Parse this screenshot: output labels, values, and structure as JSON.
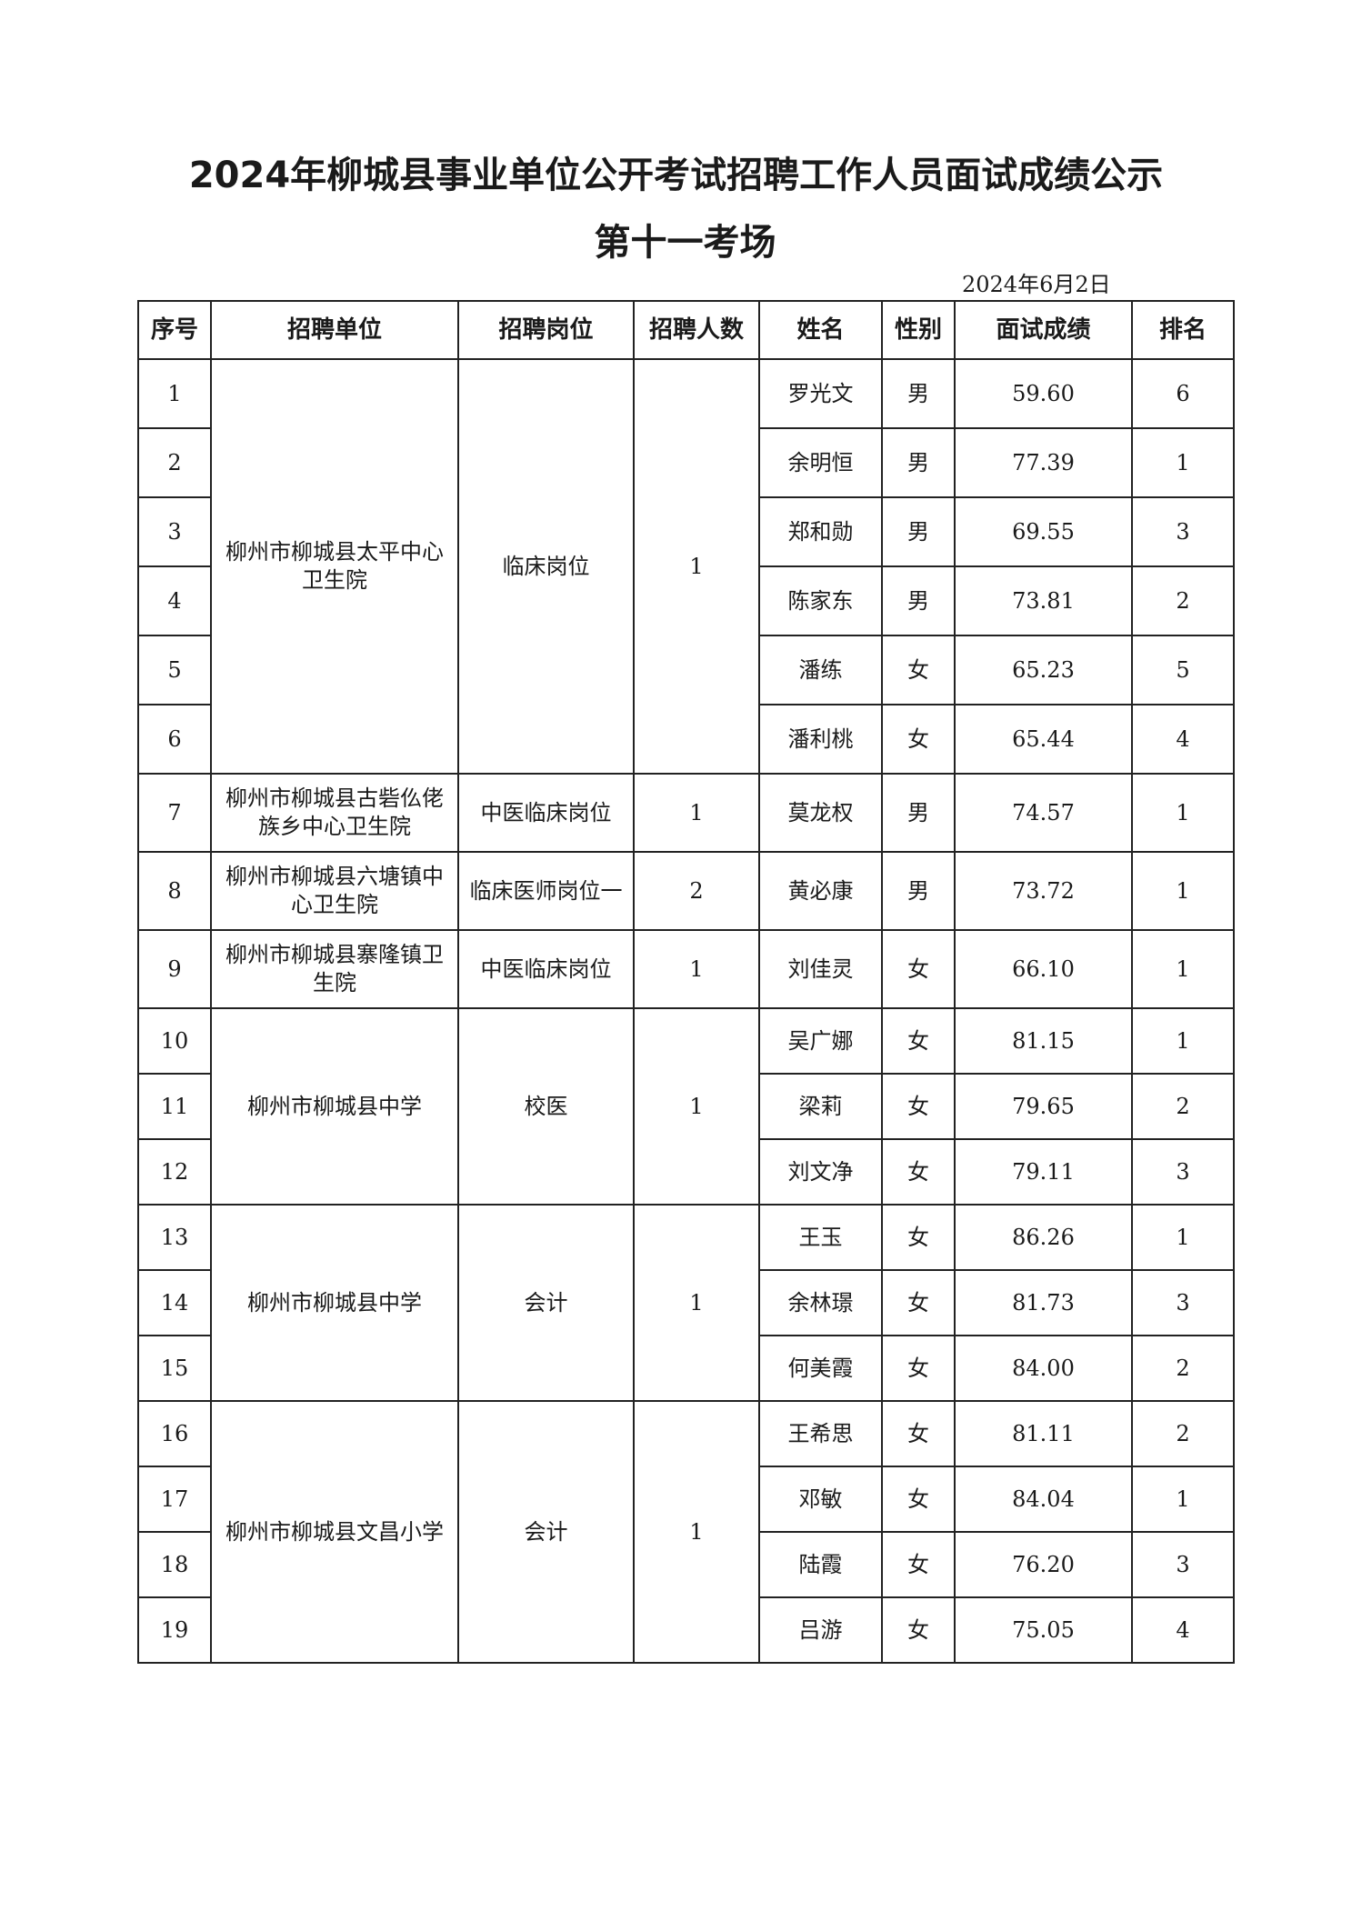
{
  "document": {
    "title": "2024年柳城县事业单位公开考试招聘工作人员面试成绩公示",
    "subtitle": "第十一考场",
    "date": "2024年6月2日"
  },
  "table": {
    "headers": [
      "序号",
      "招聘单位",
      "招聘岗位",
      "招聘人数",
      "姓名",
      "性别",
      "面试成绩",
      "排名"
    ],
    "groups": [
      {
        "unit": "柳州市柳城县太平中心卫生院",
        "position": "临床岗位",
        "quota": "1",
        "rows": [
          {
            "no": "1",
            "name": "罗光文",
            "gender": "男",
            "score": "59.60",
            "rank": "6"
          },
          {
            "no": "2",
            "name": "余明恒",
            "gender": "男",
            "score": "77.39",
            "rank": "1"
          },
          {
            "no": "3",
            "name": "郑和勋",
            "gender": "男",
            "score": "69.55",
            "rank": "3"
          },
          {
            "no": "4",
            "name": "陈家东",
            "gender": "男",
            "score": "73.81",
            "rank": "2"
          },
          {
            "no": "5",
            "name": "潘练",
            "gender": "女",
            "score": "65.23",
            "rank": "5"
          },
          {
            "no": "6",
            "name": "潘利桃",
            "gender": "女",
            "score": "65.44",
            "rank": "4"
          }
        ]
      },
      {
        "unit": "柳州市柳城县古砦仫佬族乡中心卫生院",
        "position": "中医临床岗位",
        "quota": "1",
        "rows": [
          {
            "no": "7",
            "name": "莫龙权",
            "gender": "男",
            "score": "74.57",
            "rank": "1"
          }
        ]
      },
      {
        "unit": "柳州市柳城县六塘镇中心卫生院",
        "position": "临床医师岗位一",
        "quota": "2",
        "rows": [
          {
            "no": "8",
            "name": "黄必康",
            "gender": "男",
            "score": "73.72",
            "rank": "1"
          }
        ]
      },
      {
        "unit": "柳州市柳城县寨隆镇卫生院",
        "position": "中医临床岗位",
        "quota": "1",
        "rows": [
          {
            "no": "9",
            "name": "刘佳灵",
            "gender": "女",
            "score": "66.10",
            "rank": "1"
          }
        ]
      },
      {
        "unit": "柳州市柳城县中学",
        "position": "校医",
        "quota": "1",
        "rows": [
          {
            "no": "10",
            "name": "吴广娜",
            "gender": "女",
            "score": "81.15",
            "rank": "1"
          },
          {
            "no": "11",
            "name": "梁莉",
            "gender": "女",
            "score": "79.65",
            "rank": "2"
          },
          {
            "no": "12",
            "name": "刘文净",
            "gender": "女",
            "score": "79.11",
            "rank": "3"
          }
        ]
      },
      {
        "unit": "柳州市柳城县中学",
        "position": "会计",
        "quota": "1",
        "rows": [
          {
            "no": "13",
            "name": "王玉",
            "gender": "女",
            "score": "86.26",
            "rank": "1"
          },
          {
            "no": "14",
            "name": "余林璟",
            "gender": "女",
            "score": "81.73",
            "rank": "3"
          },
          {
            "no": "15",
            "name": "何美霞",
            "gender": "女",
            "score": "84.00",
            "rank": "2"
          }
        ]
      },
      {
        "unit": "柳州市柳城县文昌小学",
        "position": "会计",
        "quota": "1",
        "rows": [
          {
            "no": "16",
            "name": "王希思",
            "gender": "女",
            "score": "81.11",
            "rank": "2"
          },
          {
            "no": "17",
            "name": "邓敏",
            "gender": "女",
            "score": "84.04",
            "rank": "1"
          },
          {
            "no": "18",
            "name": "陆霞",
            "gender": "女",
            "score": "76.20",
            "rank": "3"
          },
          {
            "no": "19",
            "name": "吕游",
            "gender": "女",
            "score": "75.05",
            "rank": "4"
          }
        ]
      }
    ]
  }
}
